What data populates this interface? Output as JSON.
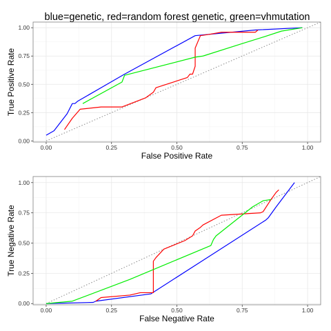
{
  "title": "blue=genetic, red=random forest genetic, green=vhmutation",
  "colors": {
    "genetic": "#0000ff",
    "rf_genetic": "#ff0000",
    "vhmutation": "#00ee00",
    "diagonal": "#888888",
    "panel_border": "#7f7f7f",
    "grid_major": "#e8e8e8",
    "grid_minor": "#f4f4f4"
  },
  "chart_data": [
    {
      "type": "line",
      "xlabel": "False Positive Rate",
      "ylabel": "True Positive Rate",
      "xlim": [
        -0.05,
        1.05
      ],
      "ylim": [
        -0.01,
        1.05
      ],
      "grid": true,
      "x_ticks": [
        0,
        0.25,
        0.5,
        0.75,
        1
      ],
      "x_tick_labels": [
        "0.00",
        "0.25",
        "0.50",
        "0.75",
        "1.00"
      ],
      "y_ticks": [
        0,
        0.25,
        0.5,
        0.75,
        1
      ],
      "y_tick_labels": [
        "0.00",
        "0.25",
        "0.50",
        "0.75",
        "1.00"
      ],
      "diagonal": [
        [
          0,
          0
        ],
        [
          1.05,
          1.05
        ]
      ],
      "series": [
        {
          "key": "genetic",
          "color_key": "genetic",
          "points": [
            [
              0.0,
              0.05
            ],
            [
              0.03,
              0.09
            ],
            [
              0.08,
              0.24
            ],
            [
              0.1,
              0.33
            ],
            [
              0.11,
              0.33
            ],
            [
              0.12,
              0.35
            ],
            [
              0.3,
              0.59
            ],
            [
              0.57,
              0.93
            ],
            [
              0.8,
              0.98
            ],
            [
              0.98,
              1.0
            ]
          ]
        },
        {
          "key": "rf_genetic",
          "color_key": "rf_genetic",
          "points": [
            [
              0.07,
              0.1
            ],
            [
              0.1,
              0.2
            ],
            [
              0.13,
              0.28
            ],
            [
              0.21,
              0.3
            ],
            [
              0.29,
              0.3
            ],
            [
              0.38,
              0.38
            ],
            [
              0.41,
              0.43
            ],
            [
              0.42,
              0.47
            ],
            [
              0.54,
              0.56
            ],
            [
              0.55,
              0.59
            ],
            [
              0.56,
              0.59
            ],
            [
              0.57,
              0.66
            ],
            [
              0.57,
              0.82
            ],
            [
              0.59,
              0.93
            ],
            [
              0.62,
              0.94
            ],
            [
              0.67,
              0.96
            ],
            [
              0.8,
              0.96
            ],
            [
              0.81,
              0.98
            ]
          ]
        },
        {
          "key": "vhmutation",
          "color_key": "vhmutation",
          "points": [
            [
              0.14,
              0.33
            ],
            [
              0.29,
              0.52
            ],
            [
              0.3,
              0.58
            ],
            [
              0.57,
              0.74
            ],
            [
              0.6,
              0.75
            ],
            [
              0.75,
              0.86
            ],
            [
              0.82,
              0.91
            ],
            [
              0.9,
              0.97
            ],
            [
              0.98,
              1.0
            ]
          ]
        }
      ]
    },
    {
      "type": "line",
      "xlabel": "False Negative Rate",
      "ylabel": "True Negative Rate",
      "xlim": [
        -0.05,
        1.05
      ],
      "ylim": [
        -0.01,
        1.05
      ],
      "grid": true,
      "x_ticks": [
        0,
        0.25,
        0.5,
        0.75,
        1
      ],
      "x_tick_labels": [
        "0.00",
        "0.25",
        "0.50",
        "0.75",
        "1.00"
      ],
      "y_ticks": [
        0,
        0.25,
        0.5,
        0.75,
        1
      ],
      "y_tick_labels": [
        "0.00",
        "0.25",
        "0.50",
        "0.75",
        "1.00"
      ],
      "diagonal": [
        [
          0,
          0
        ],
        [
          1.05,
          1.05
        ]
      ],
      "series": [
        {
          "key": "genetic",
          "color_key": "genetic",
          "points": [
            [
              0.0,
              0.0
            ],
            [
              0.18,
              0.01
            ],
            [
              0.19,
              0.02
            ],
            [
              0.4,
              0.08
            ],
            [
              0.84,
              0.69
            ],
            [
              0.85,
              0.71
            ],
            [
              0.88,
              0.8
            ],
            [
              0.95,
              1.0
            ]
          ]
        },
        {
          "key": "rf_genetic",
          "color_key": "rf_genetic",
          "points": [
            [
              0.19,
              0.02
            ],
            [
              0.21,
              0.05
            ],
            [
              0.32,
              0.07
            ],
            [
              0.36,
              0.09
            ],
            [
              0.41,
              0.09
            ],
            [
              0.41,
              0.35
            ],
            [
              0.42,
              0.38
            ],
            [
              0.45,
              0.45
            ],
            [
              0.53,
              0.52
            ],
            [
              0.56,
              0.56
            ],
            [
              0.57,
              0.6
            ],
            [
              0.59,
              0.63
            ],
            [
              0.6,
              0.65
            ],
            [
              0.67,
              0.73
            ],
            [
              0.82,
              0.75
            ],
            [
              0.83,
              0.76
            ],
            [
              0.86,
              0.86
            ],
            [
              0.88,
              0.92
            ],
            [
              0.89,
              0.94
            ]
          ]
        },
        {
          "key": "vhmutation",
          "color_key": "vhmutation",
          "points": [
            [
              0.0,
              0.0
            ],
            [
              0.1,
              0.02
            ],
            [
              0.32,
              0.2
            ],
            [
              0.63,
              0.48
            ],
            [
              0.64,
              0.53
            ],
            [
              0.65,
              0.56
            ],
            [
              0.79,
              0.8
            ],
            [
              0.83,
              0.85
            ],
            [
              0.86,
              0.86
            ]
          ]
        }
      ]
    }
  ]
}
